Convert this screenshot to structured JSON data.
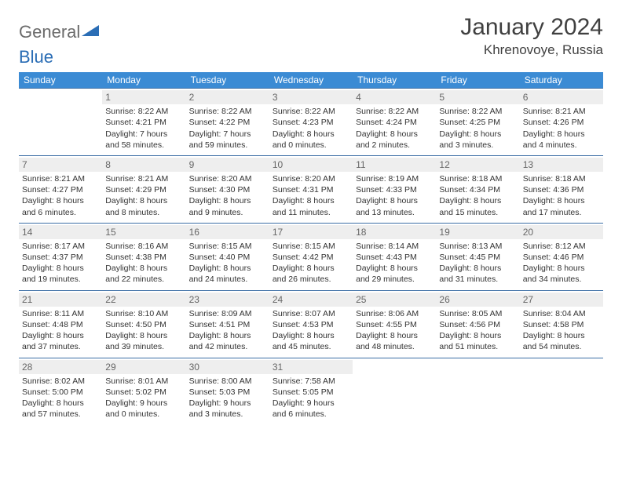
{
  "logo": {
    "text1": "General",
    "text2": "Blue"
  },
  "title": "January 2024",
  "location": "Khrenovoye, Russia",
  "weekdays": [
    "Sunday",
    "Monday",
    "Tuesday",
    "Wednesday",
    "Thursday",
    "Friday",
    "Saturday"
  ],
  "colors": {
    "header_bg": "#3b8bd4",
    "row_border": "#3b6ea5",
    "daynum_bg": "#eeeeee",
    "logo_gray": "#6b6b6b",
    "logo_blue": "#2a6db5"
  },
  "weeks": [
    [
      {
        "day": "",
        "lines": []
      },
      {
        "day": "1",
        "lines": [
          "Sunrise: 8:22 AM",
          "Sunset: 4:21 PM",
          "Daylight: 7 hours",
          "and 58 minutes."
        ]
      },
      {
        "day": "2",
        "lines": [
          "Sunrise: 8:22 AM",
          "Sunset: 4:22 PM",
          "Daylight: 7 hours",
          "and 59 minutes."
        ]
      },
      {
        "day": "3",
        "lines": [
          "Sunrise: 8:22 AM",
          "Sunset: 4:23 PM",
          "Daylight: 8 hours",
          "and 0 minutes."
        ]
      },
      {
        "day": "4",
        "lines": [
          "Sunrise: 8:22 AM",
          "Sunset: 4:24 PM",
          "Daylight: 8 hours",
          "and 2 minutes."
        ]
      },
      {
        "day": "5",
        "lines": [
          "Sunrise: 8:22 AM",
          "Sunset: 4:25 PM",
          "Daylight: 8 hours",
          "and 3 minutes."
        ]
      },
      {
        "day": "6",
        "lines": [
          "Sunrise: 8:21 AM",
          "Sunset: 4:26 PM",
          "Daylight: 8 hours",
          "and 4 minutes."
        ]
      }
    ],
    [
      {
        "day": "7",
        "lines": [
          "Sunrise: 8:21 AM",
          "Sunset: 4:27 PM",
          "Daylight: 8 hours",
          "and 6 minutes."
        ]
      },
      {
        "day": "8",
        "lines": [
          "Sunrise: 8:21 AM",
          "Sunset: 4:29 PM",
          "Daylight: 8 hours",
          "and 8 minutes."
        ]
      },
      {
        "day": "9",
        "lines": [
          "Sunrise: 8:20 AM",
          "Sunset: 4:30 PM",
          "Daylight: 8 hours",
          "and 9 minutes."
        ]
      },
      {
        "day": "10",
        "lines": [
          "Sunrise: 8:20 AM",
          "Sunset: 4:31 PM",
          "Daylight: 8 hours",
          "and 11 minutes."
        ]
      },
      {
        "day": "11",
        "lines": [
          "Sunrise: 8:19 AM",
          "Sunset: 4:33 PM",
          "Daylight: 8 hours",
          "and 13 minutes."
        ]
      },
      {
        "day": "12",
        "lines": [
          "Sunrise: 8:18 AM",
          "Sunset: 4:34 PM",
          "Daylight: 8 hours",
          "and 15 minutes."
        ]
      },
      {
        "day": "13",
        "lines": [
          "Sunrise: 8:18 AM",
          "Sunset: 4:36 PM",
          "Daylight: 8 hours",
          "and 17 minutes."
        ]
      }
    ],
    [
      {
        "day": "14",
        "lines": [
          "Sunrise: 8:17 AM",
          "Sunset: 4:37 PM",
          "Daylight: 8 hours",
          "and 19 minutes."
        ]
      },
      {
        "day": "15",
        "lines": [
          "Sunrise: 8:16 AM",
          "Sunset: 4:38 PM",
          "Daylight: 8 hours",
          "and 22 minutes."
        ]
      },
      {
        "day": "16",
        "lines": [
          "Sunrise: 8:15 AM",
          "Sunset: 4:40 PM",
          "Daylight: 8 hours",
          "and 24 minutes."
        ]
      },
      {
        "day": "17",
        "lines": [
          "Sunrise: 8:15 AM",
          "Sunset: 4:42 PM",
          "Daylight: 8 hours",
          "and 26 minutes."
        ]
      },
      {
        "day": "18",
        "lines": [
          "Sunrise: 8:14 AM",
          "Sunset: 4:43 PM",
          "Daylight: 8 hours",
          "and 29 minutes."
        ]
      },
      {
        "day": "19",
        "lines": [
          "Sunrise: 8:13 AM",
          "Sunset: 4:45 PM",
          "Daylight: 8 hours",
          "and 31 minutes."
        ]
      },
      {
        "day": "20",
        "lines": [
          "Sunrise: 8:12 AM",
          "Sunset: 4:46 PM",
          "Daylight: 8 hours",
          "and 34 minutes."
        ]
      }
    ],
    [
      {
        "day": "21",
        "lines": [
          "Sunrise: 8:11 AM",
          "Sunset: 4:48 PM",
          "Daylight: 8 hours",
          "and 37 minutes."
        ]
      },
      {
        "day": "22",
        "lines": [
          "Sunrise: 8:10 AM",
          "Sunset: 4:50 PM",
          "Daylight: 8 hours",
          "and 39 minutes."
        ]
      },
      {
        "day": "23",
        "lines": [
          "Sunrise: 8:09 AM",
          "Sunset: 4:51 PM",
          "Daylight: 8 hours",
          "and 42 minutes."
        ]
      },
      {
        "day": "24",
        "lines": [
          "Sunrise: 8:07 AM",
          "Sunset: 4:53 PM",
          "Daylight: 8 hours",
          "and 45 minutes."
        ]
      },
      {
        "day": "25",
        "lines": [
          "Sunrise: 8:06 AM",
          "Sunset: 4:55 PM",
          "Daylight: 8 hours",
          "and 48 minutes."
        ]
      },
      {
        "day": "26",
        "lines": [
          "Sunrise: 8:05 AM",
          "Sunset: 4:56 PM",
          "Daylight: 8 hours",
          "and 51 minutes."
        ]
      },
      {
        "day": "27",
        "lines": [
          "Sunrise: 8:04 AM",
          "Sunset: 4:58 PM",
          "Daylight: 8 hours",
          "and 54 minutes."
        ]
      }
    ],
    [
      {
        "day": "28",
        "lines": [
          "Sunrise: 8:02 AM",
          "Sunset: 5:00 PM",
          "Daylight: 8 hours",
          "and 57 minutes."
        ]
      },
      {
        "day": "29",
        "lines": [
          "Sunrise: 8:01 AM",
          "Sunset: 5:02 PM",
          "Daylight: 9 hours",
          "and 0 minutes."
        ]
      },
      {
        "day": "30",
        "lines": [
          "Sunrise: 8:00 AM",
          "Sunset: 5:03 PM",
          "Daylight: 9 hours",
          "and 3 minutes."
        ]
      },
      {
        "day": "31",
        "lines": [
          "Sunrise: 7:58 AM",
          "Sunset: 5:05 PM",
          "Daylight: 9 hours",
          "and 6 minutes."
        ]
      },
      {
        "day": "",
        "lines": []
      },
      {
        "day": "",
        "lines": []
      },
      {
        "day": "",
        "lines": []
      }
    ]
  ]
}
